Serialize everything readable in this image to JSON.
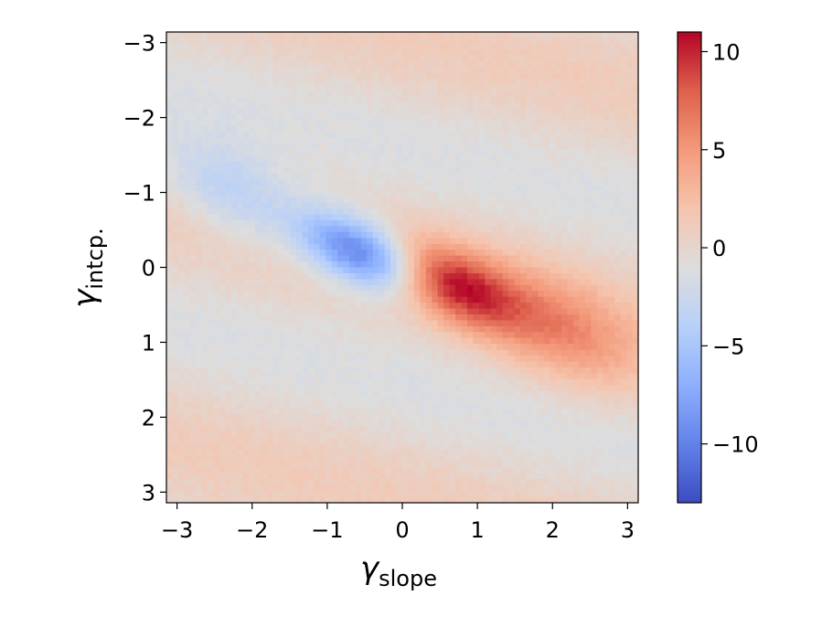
{
  "chart_data": {
    "type": "heatmap",
    "title": "",
    "xlabel": "γ",
    "xlabel_subscript": "slope",
    "ylabel": "γ",
    "ylabel_subscript": "intcp.",
    "xlim": [
      -3.14159,
      3.14159
    ],
    "ylim": [
      3.14159,
      -3.14159
    ],
    "y_inverted": true,
    "xticks": [
      -3,
      -2,
      -1,
      0,
      1,
      2,
      3
    ],
    "xtick_labels": [
      "−3",
      "−2",
      "−1",
      "0",
      "1",
      "2",
      "3"
    ],
    "yticks": [
      -3,
      -2,
      -1,
      0,
      1,
      2,
      3
    ],
    "ytick_labels": [
      "−3",
      "−2",
      "−1",
      "0",
      "1",
      "2",
      "3"
    ],
    "colormap": "coolwarm",
    "color_range": [
      -13,
      11
    ],
    "colorbar_ticks": [
      10,
      5,
      0,
      -5,
      -10
    ],
    "colorbar_tick_labels": [
      "10",
      "5",
      "0",
      "−5",
      "−10"
    ],
    "grid_size": [
      80,
      80
    ],
    "pattern": "periodic in y (period 2π); blue lobe peak ≈ −12 at x≈−0.5, red lobe peak ≈ +10 at x≈+0.6, both at y ≈ 0 and ±2π; diagonal lobe drift; weak background ripples ≈ ±2"
  }
}
